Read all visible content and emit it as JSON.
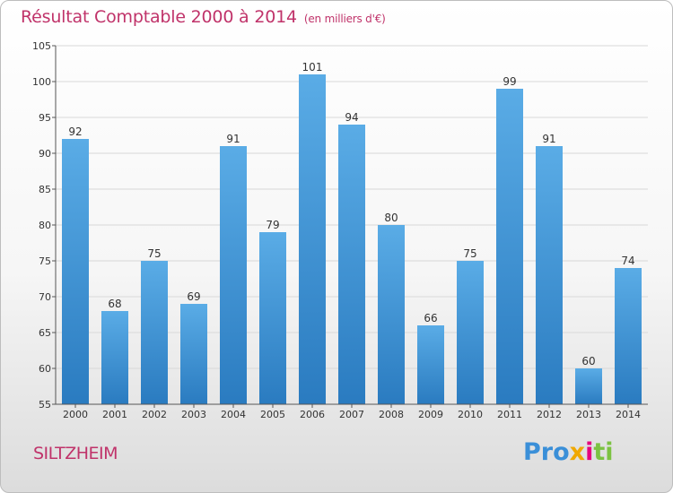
{
  "header": {
    "title": "Résultat Comptable 2000 à 2014",
    "subtitle": "(en milliers d'€)"
  },
  "footer": {
    "commune": "SILTZHEIM",
    "logo_text": "Proxiti",
    "logo_parts": [
      "Pro",
      "x",
      "i",
      "ti"
    ]
  },
  "colors": {
    "accent_text": "#c0336a",
    "bar_top": "#5aace6",
    "bar_bottom": "#2a7bc0"
  },
  "chart_data": {
    "type": "bar",
    "title": "Résultat Comptable 2000 à 2014",
    "subtitle": "(en milliers d'€)",
    "xlabel": "",
    "ylabel": "",
    "categories": [
      "2000",
      "2001",
      "2002",
      "2003",
      "2004",
      "2005",
      "2006",
      "2007",
      "2008",
      "2009",
      "2010",
      "2011",
      "2012",
      "2013",
      "2014"
    ],
    "values": [
      92,
      68,
      75,
      69,
      91,
      79,
      101,
      94,
      80,
      66,
      75,
      99,
      91,
      60,
      74
    ],
    "ylim": [
      55,
      105
    ],
    "yticks": [
      55,
      60,
      65,
      70,
      75,
      80,
      85,
      90,
      95,
      100,
      105
    ],
    "grid": "horizontal"
  }
}
